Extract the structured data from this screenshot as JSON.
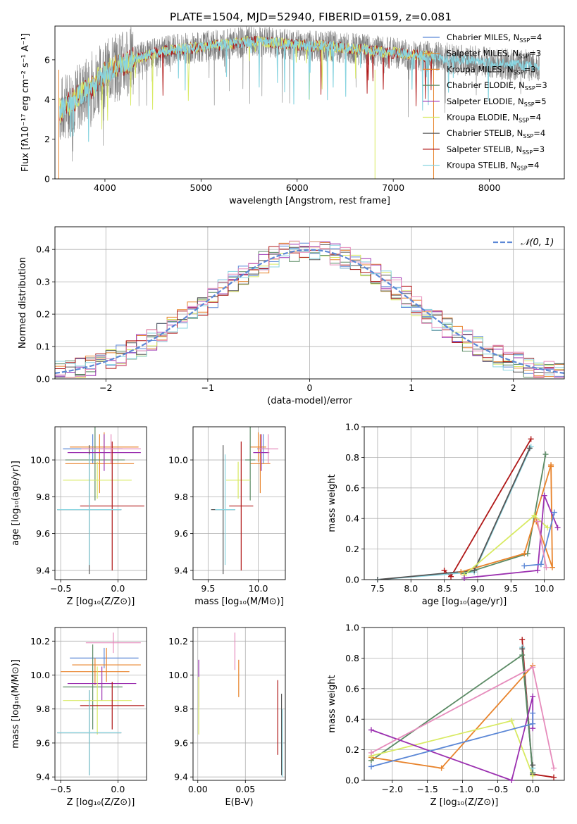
{
  "title": "PLATE=1504, MJD=52940, FIBERID=0159, z=0.081",
  "colors": {
    "chabrier_miles": "#5b87d6",
    "salpeter_miles": "#e8832b",
    "kroupa_miles": "#e8832b",
    "chabrier_elodie": "#5a8a64",
    "salpeter_elodie": "#9b30b0",
    "kroupa_elodie": "#d8ea62",
    "chabrier_stelib": "#555555",
    "salpeter_stelib": "#b01818",
    "kroupa_stelib": "#88d4e0",
    "pink": "#e68cbc",
    "gauss": "#5b87d6",
    "spectrum_gray": "#808080"
  },
  "legend": [
    {
      "label": "Chabrier MILES, N",
      "sub": "SSP",
      "tail": "=4",
      "color": "#5b87d6"
    },
    {
      "label": "Salpeter MILES, N",
      "sub": "SSP",
      "tail": "=3",
      "color": "#e8832b"
    },
    {
      "label": "Kroupa MILES, N",
      "sub": "SSP",
      "tail": "=3",
      "color": "#e8832b"
    },
    {
      "label": "Chabrier ELODIE, N",
      "sub": "SSP",
      "tail": "=3",
      "color": "#5a8a64"
    },
    {
      "label": "Salpeter ELODIE, N",
      "sub": "SSP",
      "tail": "=5",
      "color": "#9b30b0"
    },
    {
      "label": "Kroupa ELODIE, N",
      "sub": "SSP",
      "tail": "=4",
      "color": "#d8ea62"
    },
    {
      "label": "Chabrier STELIB, N",
      "sub": "SSP",
      "tail": "=4",
      "color": "#555555"
    },
    {
      "label": "Salpeter STELIB, N",
      "sub": "SSP",
      "tail": "=3",
      "color": "#b01818"
    },
    {
      "label": "Kroupa STELIB, N",
      "sub": "SSP",
      "tail": "=4",
      "color": "#88d4e0"
    }
  ],
  "chart_data": [
    {
      "id": "spectrum",
      "type": "line",
      "xlabel": "wavelength [Angstrom, rest frame]",
      "ylabel": "Flux [fλ10⁻¹⁷ erg cm⁻² s⁻¹ A⁻¹]",
      "xlim": [
        3480,
        8780
      ],
      "ylim": [
        0,
        7.7
      ],
      "xticks": [
        "4000",
        "5000",
        "6000",
        "7000",
        "8000"
      ],
      "yticks": [
        "0",
        "2",
        "4",
        "6"
      ],
      "continuum": {
        "x": [
          3480,
          3550,
          3650,
          3750,
          3850,
          3950,
          4100,
          4300,
          4500,
          4700,
          4900,
          5100,
          5300,
          5500,
          5700,
          5900,
          6100,
          6300,
          6500,
          6700,
          6900,
          7100,
          7300,
          7500,
          7700,
          7900,
          8100,
          8300,
          8500
        ],
        "y": [
          3.3,
          3.5,
          3.9,
          4.2,
          4.6,
          5.1,
          5.6,
          6.0,
          6.3,
          6.5,
          6.6,
          6.7,
          6.8,
          6.9,
          6.9,
          6.8,
          6.7,
          6.7,
          6.6,
          6.5,
          6.4,
          6.3,
          6.2,
          6.1,
          6.0,
          5.9,
          5.8,
          5.75,
          5.7
        ]
      },
      "legend_entries": 9
    },
    {
      "id": "residuals",
      "type": "histogram",
      "xlabel": "(data-model)/error",
      "ylabel": "Normed distribution",
      "xlim": [
        -2.5,
        2.5
      ],
      "ylim": [
        0,
        0.47
      ],
      "xticks": [
        "−2",
        "−1",
        "0",
        "1",
        "2"
      ],
      "yticks": [
        "0.0",
        "0.1",
        "0.2",
        "0.3",
        "0.4"
      ],
      "legend": "𝒩(0, 1)",
      "bin_width": 0.1
    },
    {
      "id": "age_vs_z",
      "type": "errorbar",
      "xlabel": "Z [log₁₀(Z/Z⊙)]",
      "ylabel": "age  [log₁₀(age/yr)]",
      "xlim": [
        -0.55,
        0.25
      ],
      "ylim": [
        9.35,
        10.18
      ],
      "xticks": [
        "−0.5",
        "0.0"
      ],
      "yticks": [
        "9.4",
        "9.6",
        "9.8",
        "10.0"
      ],
      "points": [
        {
          "x": -0.22,
          "y": 10.06,
          "xerr": 0.26,
          "yerr": 0.08,
          "c": "#5b87d6"
        },
        {
          "x": -0.12,
          "y": 10.07,
          "xerr": 0.3,
          "yerr": 0.08,
          "c": "#e8832b"
        },
        {
          "x": -0.16,
          "y": 9.98,
          "xerr": 0.3,
          "yerr": 0.16,
          "c": "#e8832b"
        },
        {
          "x": -0.2,
          "y": 10.0,
          "xerr": 0.26,
          "yerr": 0.22,
          "c": "#5a8a64"
        },
        {
          "x": -0.12,
          "y": 10.04,
          "xerr": 0.32,
          "yerr": 0.1,
          "c": "#9b30b0"
        },
        {
          "x": -0.18,
          "y": 9.89,
          "xerr": 0.3,
          "yerr": 0.1,
          "c": "#d8ea62"
        },
        {
          "x": -0.25,
          "y": 9.73,
          "xerr": 0.28,
          "yerr": 0.35,
          "c": "#555555"
        },
        {
          "x": -0.05,
          "y": 9.75,
          "xerr": 0.28,
          "yerr": 0.35,
          "c": "#b01818"
        },
        {
          "x": -0.25,
          "y": 9.73,
          "xerr": 0.28,
          "yerr": 0.3,
          "c": "#88d4e0"
        },
        {
          "x": -0.06,
          "y": 10.06,
          "xerr": 0.26,
          "yerr": 0.08,
          "c": "#e68cbc"
        }
      ]
    },
    {
      "id": "age_vs_mass",
      "type": "errorbar",
      "xlabel": "mass [log₁₀(M/M⊙)]",
      "ylabel": "",
      "xlim": [
        9.35,
        10.27
      ],
      "ylim": [
        9.35,
        10.18
      ],
      "xticks": [
        "9.5",
        "10.0"
      ],
      "yticks": [
        "9.4",
        "9.6",
        "9.8",
        "10.0"
      ],
      "points": [
        {
          "x": 10.05,
          "y": 10.06,
          "xerr": 0.06,
          "yerr": 0.08,
          "c": "#5b87d6"
        },
        {
          "x": 10.0,
          "y": 10.07,
          "xerr": 0.08,
          "yerr": 0.08,
          "c": "#e8832b"
        },
        {
          "x": 10.02,
          "y": 9.98,
          "xerr": 0.1,
          "yerr": 0.16,
          "c": "#e8832b"
        },
        {
          "x": 9.92,
          "y": 10.0,
          "xerr": 0.05,
          "yerr": 0.22,
          "c": "#5a8a64"
        },
        {
          "x": 10.03,
          "y": 10.04,
          "xerr": 0.08,
          "yerr": 0.1,
          "c": "#9b30b0"
        },
        {
          "x": 9.8,
          "y": 9.89,
          "xerr": 0.12,
          "yerr": 0.1,
          "c": "#d8ea62"
        },
        {
          "x": 9.65,
          "y": 9.73,
          "xerr": 0.12,
          "yerr": 0.35,
          "c": "#555555"
        },
        {
          "x": 9.83,
          "y": 9.75,
          "xerr": 0.12,
          "yerr": 0.35,
          "c": "#b01818"
        },
        {
          "x": 9.67,
          "y": 9.73,
          "xerr": 0.1,
          "yerr": 0.3,
          "c": "#88d4e0"
        },
        {
          "x": 10.1,
          "y": 10.06,
          "xerr": 0.1,
          "yerr": 0.08,
          "c": "#e68cbc"
        }
      ]
    },
    {
      "id": "weight_vs_age",
      "type": "line",
      "xlabel": "age  [log₁₀(age/yr)]",
      "ylabel": "mass weight",
      "xlim": [
        7.3,
        10.3
      ],
      "ylim": [
        0,
        1.0
      ],
      "xticks": [
        "7.5",
        "8.0",
        "8.5",
        "9.0",
        "9.5",
        "10.0"
      ],
      "yticks": [
        "0.0",
        "0.2",
        "0.4",
        "0.6",
        "0.8",
        "1.0"
      ],
      "series": [
        {
          "c": "#b01818",
          "x": [
            8.5,
            8.6,
            9.8
          ],
          "y": [
            0.06,
            0.02,
            0.92
          ]
        },
        {
          "c": "#88d4e0",
          "x": [
            7.5,
            8.95,
            9.8
          ],
          "y": [
            0.0,
            0.05,
            0.87
          ]
        },
        {
          "c": "#555555",
          "x": [
            7.5,
            8.95,
            9.78
          ],
          "y": [
            0.0,
            0.06,
            0.86
          ]
        },
        {
          "c": "#5a8a64",
          "x": [
            8.8,
            9.75,
            10.02
          ],
          "y": [
            0.04,
            0.17,
            0.82
          ]
        },
        {
          "c": "#e8832b",
          "x": [
            8.75,
            9.7,
            10.1
          ],
          "y": [
            0.05,
            0.17,
            0.75
          ]
        },
        {
          "c": "#e8832b",
          "x": [
            9.88,
            10.12,
            10.1
          ],
          "y": [
            0.38,
            0.08,
            0.74
          ]
        },
        {
          "c": "#d8ea62",
          "x": [
            8.8,
            9.85,
            10.05
          ],
          "y": [
            0.03,
            0.42,
            0.34
          ]
        },
        {
          "c": "#9b30b0",
          "x": [
            8.8,
            9.9,
            10.0,
            10.2
          ],
          "y": [
            0.01,
            0.06,
            0.55,
            0.34
          ]
        },
        {
          "c": "#5b87d6",
          "x": [
            9.7,
            9.95,
            10.15
          ],
          "y": [
            0.09,
            0.1,
            0.44
          ]
        },
        {
          "c": "#e68cbc",
          "x": [
            9.9,
            10.03
          ],
          "y": [
            0.38,
            0.08
          ]
        }
      ]
    },
    {
      "id": "mass_vs_z",
      "type": "errorbar",
      "xlabel": "Z [log₁₀(Z/Z⊙)]",
      "ylabel": "mass [log₁₀(M/M⊙)]",
      "xlim": [
        -0.55,
        0.25
      ],
      "ylim": [
        9.38,
        10.28
      ],
      "xticks": [
        "−0.5",
        "0.0"
      ],
      "yticks": [
        "9.4",
        "9.6",
        "9.8",
        "10.0",
        "10.2"
      ],
      "points": [
        {
          "x": -0.12,
          "y": 10.1,
          "xerr": 0.3,
          "yerr": 0.06,
          "c": "#5b87d6"
        },
        {
          "x": -0.1,
          "y": 10.06,
          "xerr": 0.3,
          "yerr": 0.1,
          "c": "#e8832b"
        },
        {
          "x": -0.2,
          "y": 10.02,
          "xerr": 0.3,
          "yerr": 0.08,
          "c": "#e8832b"
        },
        {
          "x": -0.22,
          "y": 9.93,
          "xerr": 0.26,
          "yerr": 0.25,
          "c": "#5a8a64"
        },
        {
          "x": -0.14,
          "y": 9.95,
          "xerr": 0.3,
          "yerr": 0.1,
          "c": "#9b30b0"
        },
        {
          "x": -0.18,
          "y": 9.85,
          "xerr": 0.3,
          "yerr": 0.2,
          "c": "#d8ea62"
        },
        {
          "x": -0.25,
          "y": 9.66,
          "xerr": 0.28,
          "yerr": 0.25,
          "c": "#555555"
        },
        {
          "x": -0.05,
          "y": 9.82,
          "xerr": 0.28,
          "yerr": 0.14,
          "c": "#b01818"
        },
        {
          "x": -0.25,
          "y": 9.66,
          "xerr": 0.28,
          "yerr": 0.25,
          "c": "#88d4e0"
        },
        {
          "x": -0.04,
          "y": 10.19,
          "xerr": 0.24,
          "yerr": 0.06,
          "c": "#e68cbc"
        }
      ]
    },
    {
      "id": "mass_vs_ebv",
      "type": "errorbar",
      "xlabel": "E(B-V)",
      "ylabel": "",
      "xlim": [
        -0.005,
        0.092
      ],
      "ylim": [
        9.38,
        10.28
      ],
      "xticks": [
        "0.00",
        "0.05"
      ],
      "yticks": [
        "9.4",
        "9.6",
        "9.8",
        "10.0",
        "10.2"
      ],
      "points": [
        {
          "x": 0.001,
          "y": 9.95,
          "xerr": 0,
          "yerr": 0.14,
          "c": "#9b30b0"
        },
        {
          "x": 0.001,
          "y": 9.82,
          "xerr": 0,
          "yerr": 0.17,
          "c": "#d8ea62"
        },
        {
          "x": 0.039,
          "y": 10.14,
          "xerr": 0,
          "yerr": 0.11,
          "c": "#e68cbc"
        },
        {
          "x": 0.043,
          "y": 9.98,
          "xerr": 0,
          "yerr": 0.11,
          "c": "#e8832b"
        },
        {
          "x": 0.084,
          "y": 9.75,
          "xerr": 0,
          "yerr": 0.22,
          "c": "#b01818"
        },
        {
          "x": 0.088,
          "y": 9.65,
          "xerr": 0,
          "yerr": 0.24,
          "c": "#555555"
        },
        {
          "x": 0.089,
          "y": 9.6,
          "xerr": 0,
          "yerr": 0.2,
          "c": "#88d4e0"
        }
      ]
    },
    {
      "id": "weight_vs_z",
      "type": "line",
      "xlabel": "Z [log₁₀(Z/Z⊙)]",
      "ylabel": "mass weight",
      "xlim": [
        -2.4,
        0.45
      ],
      "ylim": [
        0,
        1.0
      ],
      "xticks": [
        "−2.0",
        "−1.5",
        "−1.0",
        "−0.5",
        "0.0"
      ],
      "yticks": [
        "0.0",
        "0.2",
        "0.4",
        "0.6",
        "0.8",
        "1.0"
      ],
      "series": [
        {
          "c": "#b01818",
          "x": [
            -0.15,
            0.0,
            0.3
          ],
          "y": [
            0.92,
            0.04,
            0.02
          ]
        },
        {
          "c": "#88d4e0",
          "x": [
            -0.15,
            0.0,
            0.0
          ],
          "y": [
            0.87,
            0.05,
            0.08
          ]
        },
        {
          "c": "#555555",
          "x": [
            -0.15,
            0.0,
            0.0
          ],
          "y": [
            0.86,
            0.04,
            0.1
          ]
        },
        {
          "c": "#5a8a64",
          "x": [
            -2.3,
            -0.15,
            0.0
          ],
          "y": [
            0.13,
            0.82,
            0.05
          ]
        },
        {
          "c": "#e8832b",
          "x": [
            -2.3,
            -1.3,
            0.0
          ],
          "y": [
            0.15,
            0.08,
            0.75
          ]
        },
        {
          "c": "#d8ea62",
          "x": [
            -2.3,
            -0.3,
            0.0
          ],
          "y": [
            0.16,
            0.39,
            0.03
          ]
        },
        {
          "c": "#9b30b0",
          "x": [
            -2.3,
            -0.3,
            0.0,
            0.0
          ],
          "y": [
            0.33,
            0.0,
            0.55,
            0.34
          ]
        },
        {
          "c": "#5b87d6",
          "x": [
            -2.3,
            0.0,
            0.0
          ],
          "y": [
            0.09,
            0.37,
            0.44
          ]
        },
        {
          "c": "#e68cbc",
          "x": [
            -2.3,
            0.0,
            0.3
          ],
          "y": [
            0.18,
            0.74,
            0.08
          ]
        }
      ]
    }
  ]
}
